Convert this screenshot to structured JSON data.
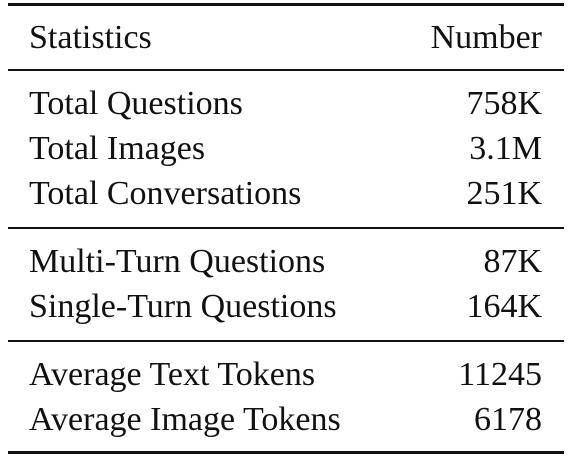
{
  "table": {
    "header": {
      "label": "Statistics",
      "value": "Number"
    },
    "groups": [
      [
        {
          "label": "Total Questions",
          "value": "758K"
        },
        {
          "label": "Total Images",
          "value": "3.1M"
        },
        {
          "label": "Total Conversations",
          "value": "251K"
        }
      ],
      [
        {
          "label": "Multi-Turn Questions",
          "value": "87K"
        },
        {
          "label": "Single-Turn Questions",
          "value": "164K"
        }
      ],
      [
        {
          "label": "Average Text Tokens",
          "value": "11245"
        },
        {
          "label": "Average Image Tokens",
          "value": "6178"
        }
      ]
    ]
  }
}
